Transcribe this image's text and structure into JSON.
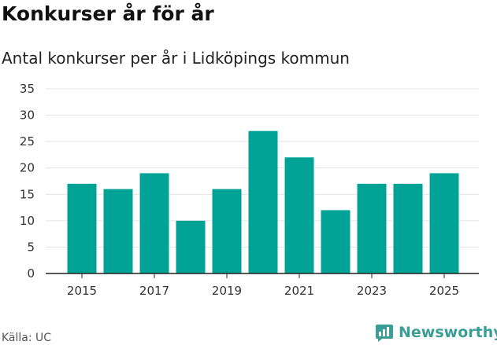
{
  "header": {
    "title": "Konkurser år för år",
    "subtitle": "Antal konkurser per år i Lidköpings kommun"
  },
  "footer": {
    "source": "Källa: UC",
    "brand": "Newsworthy"
  },
  "colors": {
    "bar": "#00a396",
    "grid": "#e3e3e3",
    "axis": "#222222",
    "brand": "#3a9e96"
  },
  "chart_data": {
    "type": "bar",
    "title": "Konkurser år för år",
    "subtitle": "Antal konkurser per år i Lidköpings kommun",
    "xlabel": "",
    "ylabel": "",
    "categories": [
      "2015",
      "2016",
      "2017",
      "2018",
      "2019",
      "2020",
      "2021",
      "2022",
      "2023",
      "2024",
      "2025"
    ],
    "values": [
      17,
      16,
      19,
      10,
      16,
      27,
      22,
      12,
      17,
      17,
      19
    ],
    "ylim": [
      0,
      35
    ],
    "yticks": [
      0,
      5,
      10,
      15,
      20,
      25,
      30,
      35
    ],
    "xtick_labels": [
      "2015",
      "2017",
      "2019",
      "2021",
      "2023",
      "2025"
    ],
    "grid": true,
    "legend": "none"
  }
}
